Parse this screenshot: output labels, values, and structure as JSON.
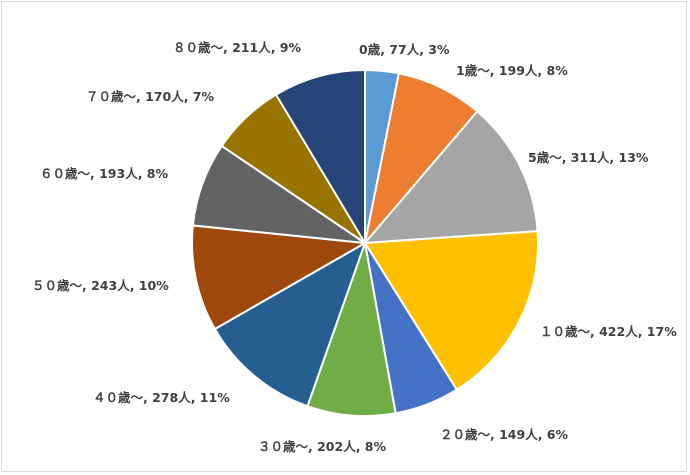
{
  "chart_data": {
    "type": "pie",
    "title": "",
    "categories": [
      "0歳",
      "1歳～",
      "5歳～",
      "10歳～",
      "20歳～",
      "30歳～",
      "40歳～",
      "50歳～",
      "60歳～",
      "70歳～",
      "80歳～"
    ],
    "values": [
      77,
      199,
      311,
      422,
      149,
      202,
      278,
      243,
      193,
      170,
      211
    ],
    "percentages": [
      3,
      8,
      13,
      17,
      6,
      8,
      11,
      10,
      8,
      7,
      9
    ],
    "unit": "人",
    "labels": [
      "0歳, 77人, 3%",
      "1歳～, 199人, 8%",
      "5歳～, 311人, 13%",
      "１０歳～, 422人, 17%",
      "２０歳～, 149人, 6%",
      "３０歳～, 202人, 8%",
      "４０歳～, 278人, 11%",
      "５０歳～, 243人, 10%",
      "６０歳～, 193人, 8%",
      "７０歳～, 170人, 7%",
      "８０歳～, 211人, 9%"
    ],
    "colors": [
      "#5b9bd5",
      "#ed7d31",
      "#a5a5a5",
      "#ffc000",
      "#4472c4",
      "#70ad47",
      "#255e91",
      "#9e480e",
      "#636363",
      "#997300",
      "#264478"
    ],
    "start_angle": "12 o'clock",
    "direction": "clockwise",
    "legend": "none"
  }
}
